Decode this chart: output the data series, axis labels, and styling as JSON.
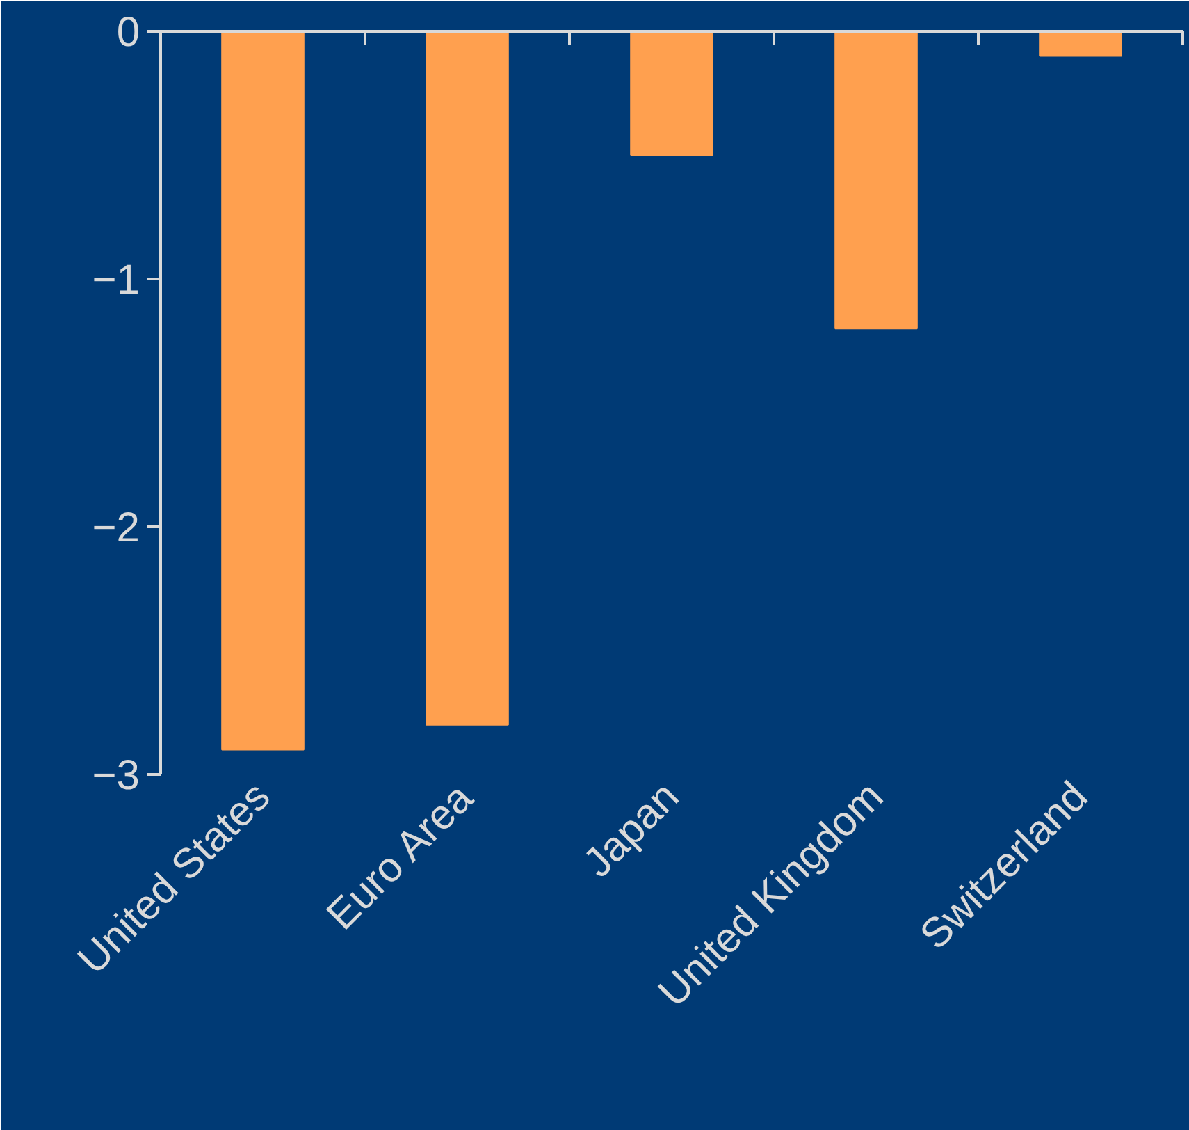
{
  "chart_data": {
    "type": "bar",
    "categories": [
      "United States",
      "Euro Area",
      "Japan",
      "United Kingdom",
      "Switzerland"
    ],
    "values": [
      -2.9,
      -2.8,
      -0.5,
      -1.2,
      -0.1
    ],
    "color": "#ffa04f",
    "ylim": [
      -3,
      0
    ],
    "yticks": [
      -3,
      -2,
      -1,
      0
    ],
    "grid": false
  }
}
